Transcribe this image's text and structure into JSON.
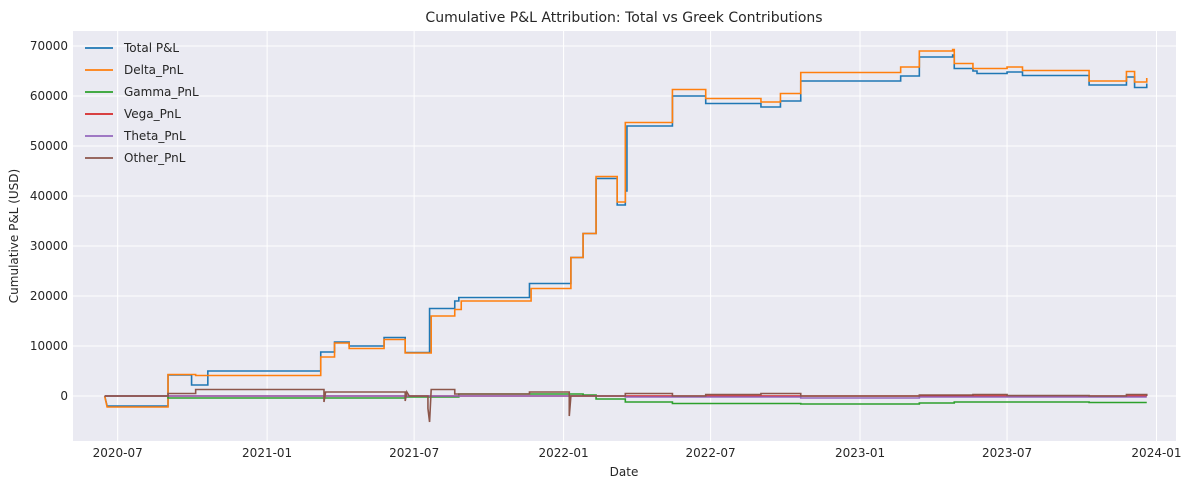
{
  "chart_data": {
    "type": "line",
    "title": "Cumulative P&L Attribution: Total vs Greek Contributions",
    "xlabel": "Date",
    "ylabel": "Cumulative P&L (USD)",
    "xlim": [
      "2020-05-07",
      "2024-01-25"
    ],
    "ylim": [
      -9000,
      73000
    ],
    "x_ticks": [
      "2020-07",
      "2021-01",
      "2021-07",
      "2022-01",
      "2022-07",
      "2023-01",
      "2023-07",
      "2024-01"
    ],
    "y_ticks": [
      0,
      10000,
      20000,
      30000,
      40000,
      50000,
      60000,
      70000
    ],
    "grid": true,
    "legend_position": "top-left",
    "series": [
      {
        "name": "Total P&L",
        "color": "#1f77b4",
        "points": [
          [
            "2020-06-15",
            0
          ],
          [
            "2020-06-18",
            -2000
          ],
          [
            "2020-09-01",
            -2000
          ],
          [
            "2020-09-01",
            4200
          ],
          [
            "2020-09-30",
            4200
          ],
          [
            "2020-09-30",
            2200
          ],
          [
            "2020-10-20",
            2200
          ],
          [
            "2020-10-20",
            5000
          ],
          [
            "2021-03-08",
            5000
          ],
          [
            "2021-03-08",
            8800
          ],
          [
            "2021-03-25",
            8800
          ],
          [
            "2021-03-25",
            10800
          ],
          [
            "2021-04-12",
            10800
          ],
          [
            "2021-04-12",
            10000
          ],
          [
            "2021-05-25",
            10000
          ],
          [
            "2021-05-25",
            11700
          ],
          [
            "2021-06-20",
            11700
          ],
          [
            "2021-06-20",
            8700
          ],
          [
            "2021-07-20",
            8700
          ],
          [
            "2021-07-20",
            17500
          ],
          [
            "2021-08-20",
            17500
          ],
          [
            "2021-08-20",
            19000
          ],
          [
            "2021-08-25",
            19000
          ],
          [
            "2021-08-25",
            19700
          ],
          [
            "2021-11-20",
            19700
          ],
          [
            "2021-11-20",
            22500
          ],
          [
            "2022-01-10",
            22500
          ],
          [
            "2022-01-10",
            27700
          ],
          [
            "2022-01-25",
            27700
          ],
          [
            "2022-01-25",
            32500
          ],
          [
            "2022-02-10",
            32500
          ],
          [
            "2022-02-10",
            43500
          ],
          [
            "2022-03-08",
            43500
          ],
          [
            "2022-03-08",
            38200
          ],
          [
            "2022-03-18",
            38200
          ],
          [
            "2022-03-18",
            41000
          ],
          [
            "2022-03-20",
            41000
          ],
          [
            "2022-03-20",
            54000
          ],
          [
            "2022-05-15",
            54000
          ],
          [
            "2022-05-15",
            60000
          ],
          [
            "2022-06-25",
            60000
          ],
          [
            "2022-06-25",
            58500
          ],
          [
            "2022-09-01",
            58500
          ],
          [
            "2022-09-01",
            57800
          ],
          [
            "2022-09-25",
            57800
          ],
          [
            "2022-09-25",
            59000
          ],
          [
            "2022-10-20",
            59000
          ],
          [
            "2022-10-20",
            63000
          ],
          [
            "2023-02-20",
            63000
          ],
          [
            "2023-02-20",
            64000
          ],
          [
            "2023-03-15",
            64000
          ],
          [
            "2023-03-15",
            67800
          ],
          [
            "2023-04-25",
            67800
          ],
          [
            "2023-04-25",
            68200
          ],
          [
            "2023-04-27",
            68200
          ],
          [
            "2023-04-27",
            65500
          ],
          [
            "2023-05-20",
            65500
          ],
          [
            "2023-05-20",
            65000
          ],
          [
            "2023-05-25",
            65000
          ],
          [
            "2023-05-25",
            64500
          ],
          [
            "2023-07-01",
            64500
          ],
          [
            "2023-07-01",
            64800
          ],
          [
            "2023-07-20",
            64800
          ],
          [
            "2023-07-20",
            64100
          ],
          [
            "2023-10-10",
            64100
          ],
          [
            "2023-10-10",
            62200
          ],
          [
            "2023-11-25",
            62200
          ],
          [
            "2023-11-25",
            63800
          ],
          [
            "2023-12-05",
            63800
          ],
          [
            "2023-12-05",
            61700
          ],
          [
            "2023-12-20",
            61700
          ],
          [
            "2023-12-20",
            62500
          ]
        ]
      },
      {
        "name": "Delta_PnL",
        "color": "#ff7f0e",
        "points": [
          [
            "2020-06-15",
            0
          ],
          [
            "2020-06-18",
            -2200
          ],
          [
            "2020-09-01",
            -2200
          ],
          [
            "2020-09-01",
            4300
          ],
          [
            "2020-10-05",
            4300
          ],
          [
            "2020-10-05",
            4100
          ],
          [
            "2021-03-08",
            4100
          ],
          [
            "2021-03-08",
            7800
          ],
          [
            "2021-03-25",
            7800
          ],
          [
            "2021-03-25",
            10600
          ],
          [
            "2021-04-12",
            10600
          ],
          [
            "2021-04-12",
            9500
          ],
          [
            "2021-05-25",
            9500
          ],
          [
            "2021-05-25",
            11300
          ],
          [
            "2021-06-20",
            11300
          ],
          [
            "2021-06-20",
            8600
          ],
          [
            "2021-07-22",
            8600
          ],
          [
            "2021-07-22",
            16000
          ],
          [
            "2021-08-20",
            16000
          ],
          [
            "2021-08-20",
            17300
          ],
          [
            "2021-08-28",
            17300
          ],
          [
            "2021-08-28",
            19000
          ],
          [
            "2021-11-22",
            19000
          ],
          [
            "2021-11-22",
            21500
          ],
          [
            "2022-01-10",
            21500
          ],
          [
            "2022-01-10",
            27700
          ],
          [
            "2022-01-25",
            27700
          ],
          [
            "2022-01-25",
            32500
          ],
          [
            "2022-02-10",
            32500
          ],
          [
            "2022-02-10",
            43900
          ],
          [
            "2022-03-08",
            43900
          ],
          [
            "2022-03-08",
            38800
          ],
          [
            "2022-03-18",
            38800
          ],
          [
            "2022-03-18",
            54700
          ],
          [
            "2022-05-15",
            54700
          ],
          [
            "2022-05-15",
            61300
          ],
          [
            "2022-06-25",
            61300
          ],
          [
            "2022-06-25",
            59500
          ],
          [
            "2022-09-01",
            59500
          ],
          [
            "2022-09-01",
            58800
          ],
          [
            "2022-09-25",
            58800
          ],
          [
            "2022-09-25",
            60500
          ],
          [
            "2022-10-20",
            60500
          ],
          [
            "2022-10-20",
            64700
          ],
          [
            "2023-02-20",
            64700
          ],
          [
            "2023-02-20",
            65800
          ],
          [
            "2023-03-15",
            65800
          ],
          [
            "2023-03-15",
            69000
          ],
          [
            "2023-04-25",
            69000
          ],
          [
            "2023-04-25",
            69300
          ],
          [
            "2023-04-27",
            69300
          ],
          [
            "2023-04-27",
            66500
          ],
          [
            "2023-05-20",
            66500
          ],
          [
            "2023-05-20",
            65500
          ],
          [
            "2023-07-01",
            65500
          ],
          [
            "2023-07-01",
            65800
          ],
          [
            "2023-07-20",
            65800
          ],
          [
            "2023-07-20",
            65100
          ],
          [
            "2023-10-10",
            65100
          ],
          [
            "2023-10-10",
            63000
          ],
          [
            "2023-11-25",
            63000
          ],
          [
            "2023-11-25",
            64900
          ],
          [
            "2023-12-05",
            64900
          ],
          [
            "2023-12-05",
            62800
          ],
          [
            "2023-12-20",
            62800
          ],
          [
            "2023-12-20",
            63600
          ]
        ]
      },
      {
        "name": "Gamma_PnL",
        "color": "#2ca02c",
        "points": [
          [
            "2020-06-15",
            0
          ],
          [
            "2020-09-01",
            0
          ],
          [
            "2020-09-01",
            -400
          ],
          [
            "2021-06-20",
            -400
          ],
          [
            "2021-06-20",
            -200
          ],
          [
            "2021-08-25",
            -200
          ],
          [
            "2021-08-25",
            400
          ],
          [
            "2022-01-25",
            400
          ],
          [
            "2022-01-25",
            200
          ],
          [
            "2022-02-10",
            200
          ],
          [
            "2022-02-10",
            -600
          ],
          [
            "2022-03-18",
            -600
          ],
          [
            "2022-03-18",
            -1200
          ],
          [
            "2022-05-15",
            -1200
          ],
          [
            "2022-05-15",
            -1500
          ],
          [
            "2022-10-20",
            -1500
          ],
          [
            "2022-10-20",
            -1600
          ],
          [
            "2023-03-15",
            -1600
          ],
          [
            "2023-03-15",
            -1400
          ],
          [
            "2023-04-27",
            -1400
          ],
          [
            "2023-04-27",
            -1200
          ],
          [
            "2023-10-10",
            -1200
          ],
          [
            "2023-10-10",
            -1300
          ],
          [
            "2023-12-20",
            -1300
          ]
        ]
      },
      {
        "name": "Vega_PnL",
        "color": "#d62728",
        "points": [
          [
            "2020-06-15",
            0
          ],
          [
            "2023-12-20",
            0
          ]
        ]
      },
      {
        "name": "Theta_PnL",
        "color": "#9467bd",
        "points": [
          [
            "2020-06-15",
            0
          ],
          [
            "2022-03-18",
            0
          ],
          [
            "2022-03-18",
            -200
          ],
          [
            "2022-10-20",
            -200
          ],
          [
            "2022-10-20",
            -400
          ],
          [
            "2023-03-15",
            -400
          ],
          [
            "2023-03-15",
            -200
          ],
          [
            "2023-12-20",
            -200
          ]
        ]
      },
      {
        "name": "Other_PnL",
        "color": "#8c564b",
        "points": [
          [
            "2020-06-15",
            0
          ],
          [
            "2020-09-01",
            0
          ],
          [
            "2020-09-01",
            500
          ],
          [
            "2020-10-05",
            500
          ],
          [
            "2020-10-05",
            1300
          ],
          [
            "2021-03-08",
            1300
          ],
          [
            "2021-03-12",
            1300
          ],
          [
            "2021-03-12",
            -1200
          ],
          [
            "2021-03-14",
            800
          ],
          [
            "2021-06-20",
            800
          ],
          [
            "2021-06-20",
            -1000
          ],
          [
            "2021-06-22",
            800
          ],
          [
            "2021-06-25",
            0
          ],
          [
            "2021-07-18",
            0
          ],
          [
            "2021-07-18",
            -2500
          ],
          [
            "2021-07-20",
            -5200
          ],
          [
            "2021-07-22",
            1300
          ],
          [
            "2021-08-20",
            1300
          ],
          [
            "2021-08-20",
            400
          ],
          [
            "2021-11-20",
            400
          ],
          [
            "2021-11-20",
            800
          ],
          [
            "2022-01-08",
            800
          ],
          [
            "2022-01-08",
            -4000
          ],
          [
            "2022-01-10",
            0
          ],
          [
            "2022-03-18",
            0
          ],
          [
            "2022-03-18",
            500
          ],
          [
            "2022-05-15",
            500
          ],
          [
            "2022-05-15",
            0
          ],
          [
            "2022-06-25",
            0
          ],
          [
            "2022-06-25",
            300
          ],
          [
            "2022-09-01",
            300
          ],
          [
            "2022-09-01",
            500
          ],
          [
            "2022-10-20",
            500
          ],
          [
            "2022-10-20",
            0
          ],
          [
            "2023-03-15",
            0
          ],
          [
            "2023-03-15",
            200
          ],
          [
            "2023-05-20",
            200
          ],
          [
            "2023-05-20",
            300
          ],
          [
            "2023-07-01",
            300
          ],
          [
            "2023-07-01",
            100
          ],
          [
            "2023-10-10",
            100
          ],
          [
            "2023-10-10",
            0
          ],
          [
            "2023-11-25",
            0
          ],
          [
            "2023-11-25",
            300
          ],
          [
            "2023-12-20",
            300
          ],
          [
            "2023-12-20",
            0
          ]
        ]
      }
    ]
  }
}
